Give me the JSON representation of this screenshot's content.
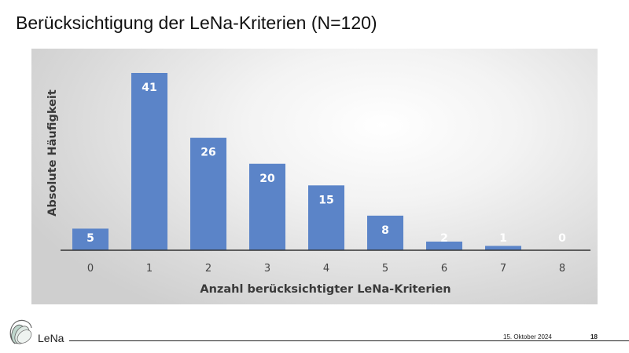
{
  "slide": {
    "title": "Berücksichtigung der LeNa-Kriterien (N=120)"
  },
  "footer": {
    "brand": "LeNa",
    "date": "15. Oktober 2024",
    "page": "18"
  },
  "chart_data": {
    "type": "bar",
    "title": "",
    "xlabel": "Anzahl berücksichtigter LeNa-Kriterien",
    "ylabel": "Absolute Häufigkeit",
    "categories": [
      "0",
      "1",
      "2",
      "3",
      "4",
      "5",
      "6",
      "7",
      "8"
    ],
    "values": [
      5,
      41,
      26,
      20,
      15,
      8,
      2,
      1,
      0
    ],
    "data_labels": true,
    "grid": false,
    "legend": "none",
    "bar_color": "#5b84c8",
    "ylim": [
      0,
      41
    ]
  }
}
